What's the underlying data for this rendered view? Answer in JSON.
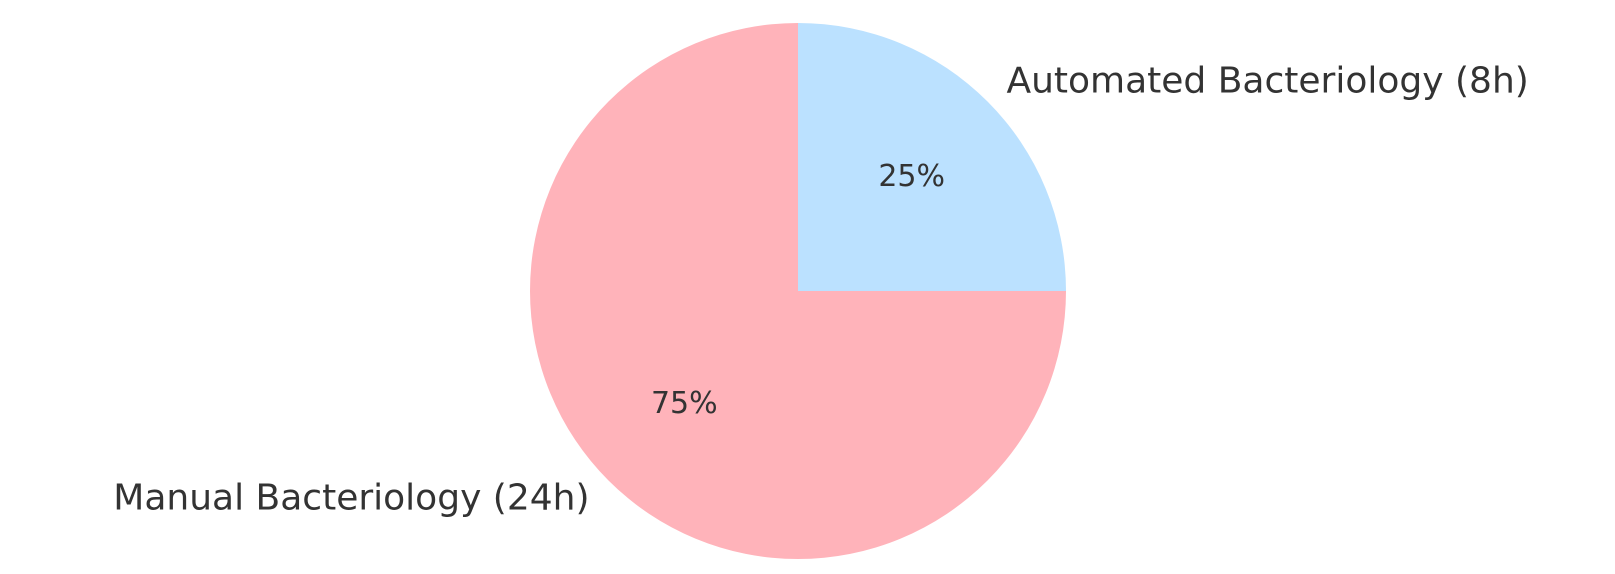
{
  "chart_data": {
    "type": "pie",
    "categories": [
      "Automated Bacteriology (8h)",
      "Manual Bacteriology (24h)"
    ],
    "values": [
      25,
      75
    ],
    "value_labels": [
      "25%",
      "75%"
    ],
    "colors": [
      "#bbe1ff",
      "#ffb3ba"
    ]
  }
}
